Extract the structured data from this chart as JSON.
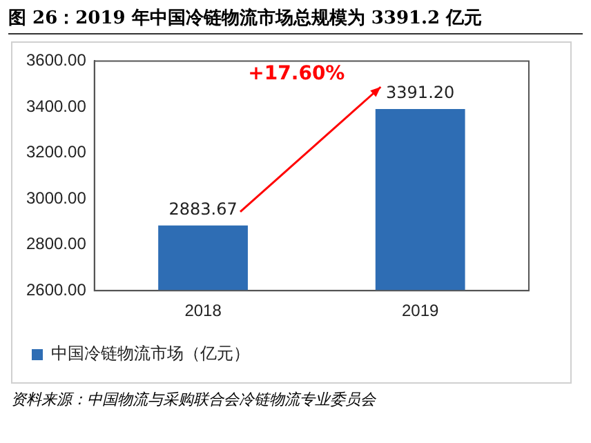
{
  "chart_data": {
    "type": "bar",
    "title": "图 26：2019 年中国冷链物流市场总规模为 3391.2 亿元",
    "categories": [
      "2018",
      "2019"
    ],
    "series": [
      {
        "name": "中国冷链物流市场（亿元）",
        "color": "#2e6db4",
        "values": [
          2883.67,
          3391.2
        ],
        "value_labels": [
          "2883.67",
          "3391.20"
        ]
      }
    ],
    "ylim": [
      2600,
      3600
    ],
    "yticks": [
      {
        "value": 2600,
        "label": "2600.00"
      },
      {
        "value": 2800,
        "label": "2800.00"
      },
      {
        "value": 3000,
        "label": "3000.00"
      },
      {
        "value": 3200,
        "label": "3200.00"
      },
      {
        "value": 3400,
        "label": "3400.00"
      },
      {
        "value": 3600,
        "label": "3600.00"
      }
    ],
    "grid": false,
    "legend": "bottom",
    "annotations": [
      "+17.60%",
      "资料来源：中国物流与采购联合会冷链物流专业委员会"
    ]
  }
}
